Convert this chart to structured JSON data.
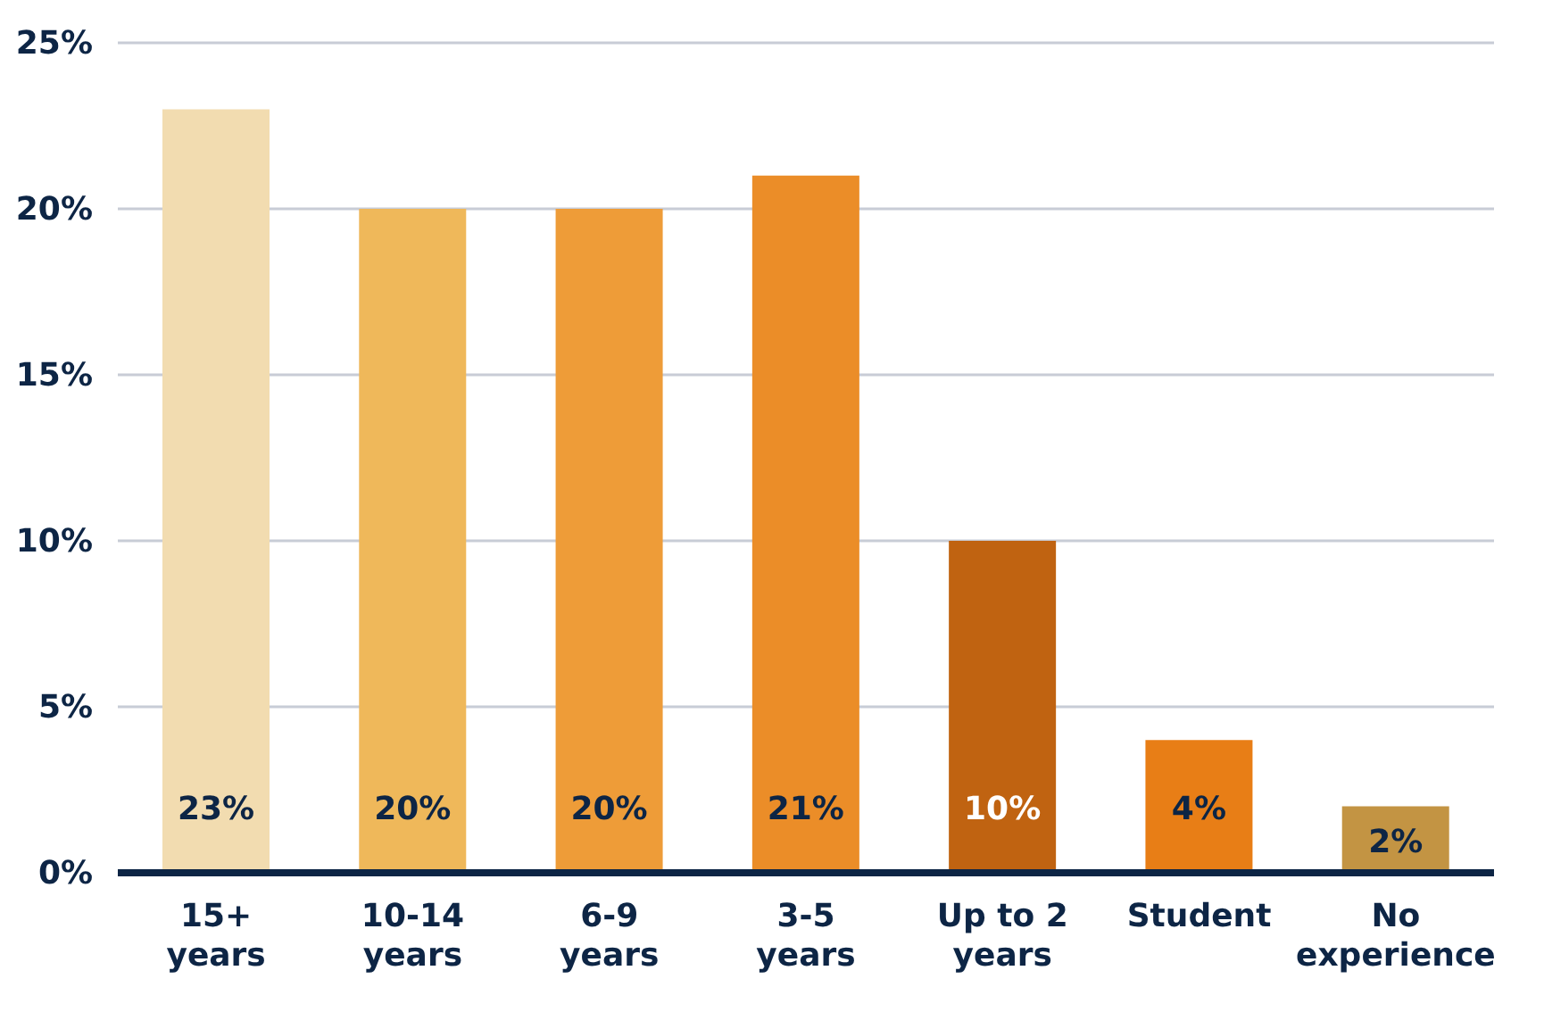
{
  "chart_data": {
    "type": "bar",
    "categories": [
      "15+ years",
      "10-14 years",
      "6-9 years",
      "3-5 years",
      "Up to 2 years",
      "Student",
      "No experience"
    ],
    "values": [
      23,
      20,
      20,
      21,
      10,
      4,
      2
    ],
    "colors": [
      "#f2dcb0",
      "#efb85a",
      "#ee9c38",
      "#eb8d28",
      "#c06311",
      "#e87e16",
      "#c39443"
    ],
    "value_labels": [
      "23%",
      "20%",
      "20%",
      "21%",
      "10%",
      "4%",
      "2%"
    ],
    "ylim": [
      0,
      25
    ],
    "yticks": [
      {
        "value": 0,
        "label": "0%"
      },
      {
        "value": 5,
        "label": "5%"
      },
      {
        "value": 10,
        "label": "10%"
      },
      {
        "value": 15,
        "label": "15%"
      },
      {
        "value": 20,
        "label": "20%"
      },
      {
        "value": 25,
        "label": "25%"
      }
    ],
    "grid": "y",
    "legend": false
  }
}
